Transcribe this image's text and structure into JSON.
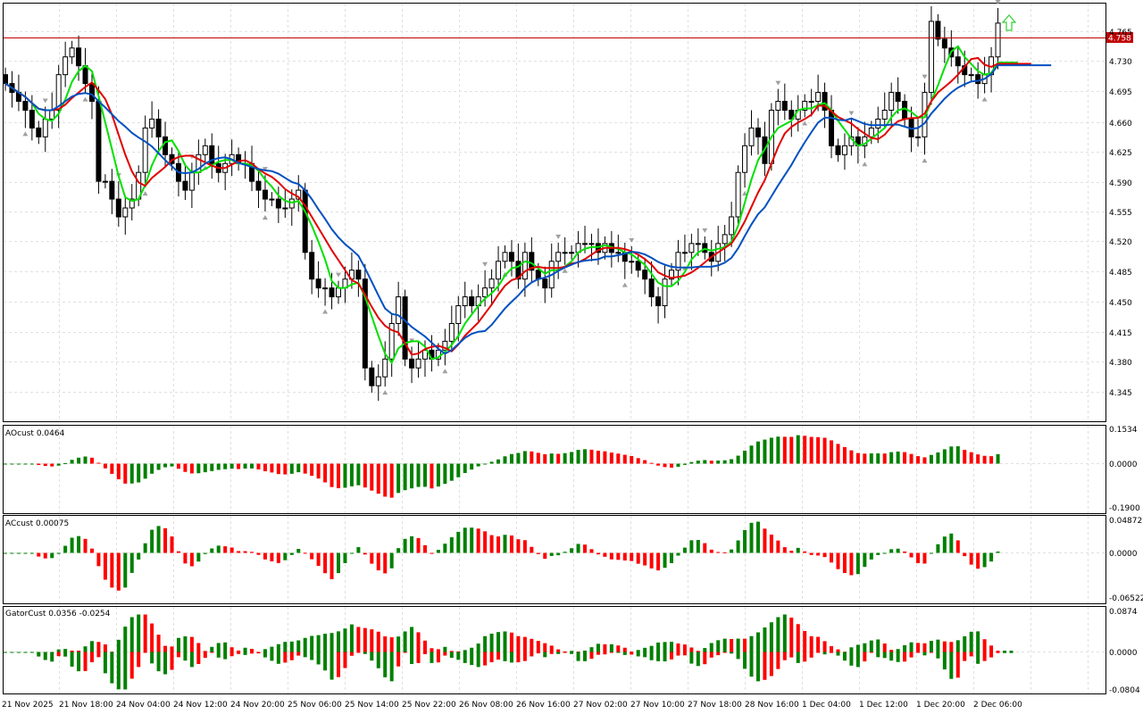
{
  "colors": {
    "bull": "#008000",
    "bear": "#ff0000",
    "alligator_lips": "#00e000",
    "alligator_teeth": "#e00000",
    "alligator_jaw": "#0050c0",
    "price_line": "#c00000",
    "grid": "#e0e0e0",
    "fractal": "#a0a0a0",
    "arrow": "#30d030"
  },
  "main": {
    "price_label": "4.758",
    "y_ticks": [
      "4.765",
      "4.730",
      "4.695",
      "4.660",
      "4.625",
      "4.590",
      "4.555",
      "4.520",
      "4.485",
      "4.450",
      "4.415",
      "4.380",
      "4.345"
    ]
  },
  "ao": {
    "label": "AOcust 0.0464",
    "y_ticks": [
      "0.1534",
      "0.0000",
      "-0.1900"
    ]
  },
  "ac": {
    "label": "ACcust 0.00075",
    "y_ticks": [
      "0.04872",
      "0.0000",
      "-0.06522"
    ]
  },
  "gator": {
    "label": "GatorCust 0.0356 -0.0254",
    "y_ticks": [
      "0.0874",
      "0.0000",
      "-0.0804"
    ]
  },
  "time_axis": [
    "21 Nov 2025",
    "21 Nov 18:00",
    "24 Nov 04:00",
    "24 Nov 12:00",
    "24 Nov 20:00",
    "25 Nov 06:00",
    "25 Nov 14:00",
    "25 Nov 22:00",
    "26 Nov 08:00",
    "26 Nov 16:00",
    "27 Nov 02:00",
    "27 Nov 10:00",
    "27 Nov 18:00",
    "28 Nov 16:00",
    "1 Dec 04:00",
    "1 Dec 12:00",
    "1 Dec 20:00",
    "2 Dec 06:00"
  ],
  "chart_data": {
    "type": "candlestick",
    "symbol_price_now": 4.758,
    "ylim": [
      4.31,
      4.78
    ],
    "candles_close_approx": [
      4.69,
      4.68,
      4.67,
      4.66,
      4.64,
      4.63,
      4.65,
      4.66,
      4.7,
      4.72,
      4.73,
      4.71,
      4.69,
      4.67,
      4.58,
      4.58,
      4.56,
      4.54,
      4.55,
      4.56,
      4.59,
      4.64,
      4.65,
      4.63,
      4.61,
      4.6,
      4.58,
      4.57,
      4.59,
      4.61,
      4.62,
      4.6,
      4.59,
      4.6,
      4.61,
      4.6,
      4.6,
      4.58,
      4.57,
      4.56,
      4.56,
      4.55,
      4.55,
      4.56,
      4.57,
      4.5,
      4.47,
      4.46,
      4.46,
      4.45,
      4.46,
      4.47,
      4.48,
      4.47,
      4.37,
      4.35,
      4.36,
      4.38,
      4.42,
      4.45,
      4.38,
      4.37,
      4.38,
      4.39,
      4.38,
      4.39,
      4.4,
      4.42,
      4.44,
      4.45,
      4.44,
      4.45,
      4.46,
      4.47,
      4.49,
      4.5,
      4.49,
      4.47,
      4.5,
      4.48,
      4.47,
      4.46,
      4.49,
      4.5,
      4.5,
      4.5,
      4.51,
      4.51,
      4.51,
      4.5,
      4.51,
      4.5,
      4.5,
      4.49,
      4.49,
      4.48,
      4.47,
      4.45,
      4.44,
      4.47,
      4.48,
      4.5,
      4.5,
      4.51,
      4.51,
      4.5,
      4.49,
      4.51,
      4.52,
      4.54,
      4.59,
      4.62,
      4.64,
      4.63,
      4.6,
      4.66,
      4.67,
      4.66,
      4.65,
      4.66,
      4.67,
      4.67,
      4.68,
      4.66,
      4.62,
      4.61,
      4.62,
      4.63,
      4.62,
      4.63,
      4.64,
      4.65,
      4.66,
      4.68,
      4.67,
      4.65,
      4.63,
      4.63,
      4.68,
      4.76,
      4.74,
      4.73,
      4.72,
      4.71,
      4.7,
      4.7,
      4.69,
      4.7,
      4.72,
      4.758
    ]
  }
}
